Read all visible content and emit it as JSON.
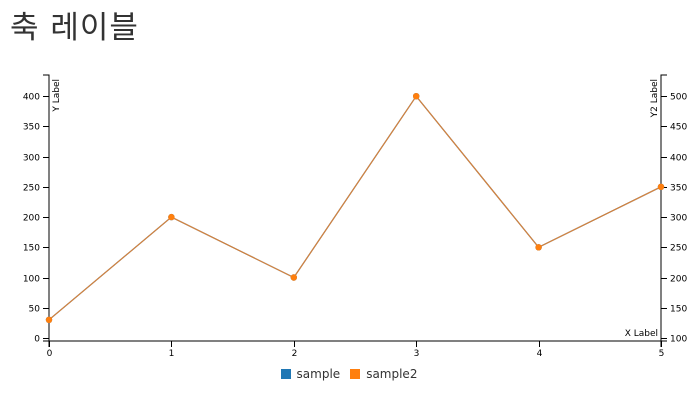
{
  "title": "축 레이블",
  "colors": {
    "sample": "#1f77b4",
    "sample2": "#ff7f0e",
    "line_stroke": "#d9823a"
  },
  "chart_data": {
    "type": "line",
    "title": "축 레이블",
    "xlabel": "X Label",
    "ylabel": "Y Label",
    "y2label": "Y2 Label",
    "x": [
      0,
      1,
      2,
      3,
      4,
      5
    ],
    "xlim": [
      0,
      5
    ],
    "ylim": [
      -5,
      435
    ],
    "y2lim": [
      95,
      535
    ],
    "x_ticks": [
      0,
      1,
      2,
      3,
      4,
      5
    ],
    "y_ticks": [
      0,
      50,
      100,
      150,
      200,
      250,
      300,
      350,
      400
    ],
    "y2_ticks": [
      100,
      150,
      200,
      250,
      300,
      350,
      400,
      450,
      500
    ],
    "grid": false,
    "legend_position": "bottom",
    "series": [
      {
        "name": "sample",
        "axis": "y",
        "values": [
          30,
          200,
          100,
          400,
          150,
          250
        ],
        "color": "#1f77b4"
      },
      {
        "name": "sample2",
        "axis": "y2",
        "values": [
          130,
          300,
          200,
          500,
          250,
          350
        ],
        "color": "#ff7f0e"
      }
    ]
  }
}
